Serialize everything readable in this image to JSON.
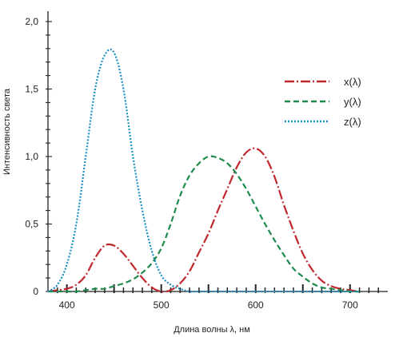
{
  "chart_data": {
    "type": "line",
    "xlabel": "Длина волны λ, нм",
    "ylabel": "Интенсивность света",
    "xlim": [
      380,
      740
    ],
    "ylim": [
      0,
      2.0
    ],
    "x_ticks": [
      400,
      500,
      600,
      700
    ],
    "y_ticks": [
      0,
      0.5,
      1.0,
      1.5,
      2.0
    ],
    "x_tick_labels": [
      "400",
      "500",
      "600",
      "700"
    ],
    "y_tick_labels": [
      "0",
      "0,5",
      "1,0",
      "1,5",
      "2,0"
    ],
    "grid": false,
    "legend_position": "top-right",
    "x": [
      380,
      390,
      400,
      410,
      420,
      430,
      440,
      450,
      460,
      470,
      480,
      490,
      500,
      510,
      520,
      530,
      540,
      550,
      560,
      570,
      580,
      590,
      600,
      610,
      620,
      630,
      640,
      650,
      660,
      670,
      680,
      690,
      700,
      710
    ],
    "series": [
      {
        "name": "x(λ)",
        "color": "#c0272d",
        "dash": "dashdot",
        "values": [
          0.0,
          0.01,
          0.02,
          0.05,
          0.12,
          0.25,
          0.34,
          0.34,
          0.28,
          0.19,
          0.1,
          0.03,
          0.0,
          0.01,
          0.06,
          0.15,
          0.29,
          0.43,
          0.6,
          0.76,
          0.92,
          1.03,
          1.06,
          1.0,
          0.85,
          0.64,
          0.45,
          0.28,
          0.16,
          0.08,
          0.04,
          0.02,
          0.01,
          0.0
        ]
      },
      {
        "name": "y(λ)",
        "color": "#1e8a4c",
        "dash": "dashed",
        "values": [
          0.0,
          0.0,
          0.0,
          0.0,
          0.01,
          0.02,
          0.02,
          0.04,
          0.06,
          0.09,
          0.14,
          0.21,
          0.32,
          0.5,
          0.71,
          0.86,
          0.95,
          1.0,
          0.99,
          0.95,
          0.87,
          0.76,
          0.63,
          0.5,
          0.38,
          0.27,
          0.17,
          0.11,
          0.06,
          0.03,
          0.02,
          0.01,
          0.0,
          0.0
        ]
      },
      {
        "name": "z(λ)",
        "color": "#1a8fc4",
        "dash": "dotted",
        "values": [
          0.0,
          0.05,
          0.2,
          0.5,
          1.0,
          1.5,
          1.75,
          1.77,
          1.5,
          1.0,
          0.6,
          0.3,
          0.12,
          0.05,
          0.02,
          0.0,
          0.0,
          0.0,
          0.0,
          0.0,
          0.0,
          0.0,
          0.0,
          0.0,
          0.0,
          0.0,
          0.0,
          0.0,
          0.0,
          0.0,
          0.0,
          0.0,
          0.0,
          0.0
        ]
      }
    ]
  }
}
